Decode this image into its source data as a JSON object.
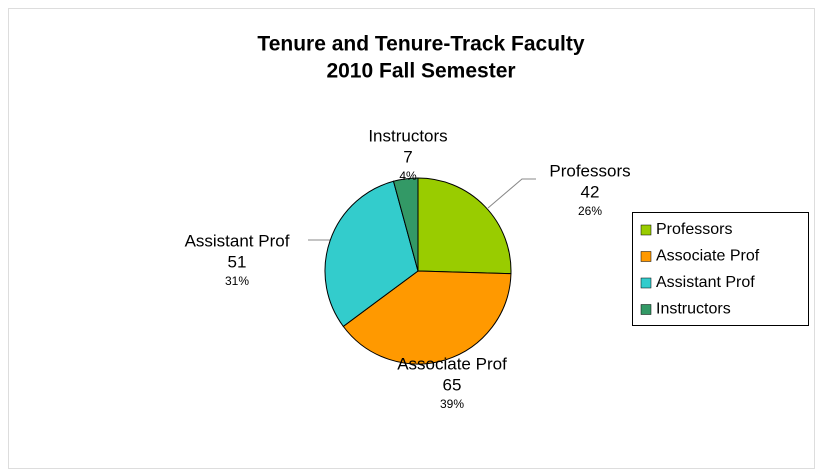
{
  "chart_data": {
    "type": "pie",
    "title": "Tenure and Tenure-Track Faculty",
    "subtitle": "2010 Fall Semester",
    "categories": [
      "Professors",
      "Associate Prof",
      "Assistant Prof",
      "Instructors"
    ],
    "values": [
      42,
      65,
      51,
      7
    ],
    "percent_labels": [
      "26%",
      "39%",
      "31%",
      "4%"
    ],
    "colors": [
      "#99cc00",
      "#ff9900",
      "#33cccc",
      "#339966"
    ],
    "legend": "right"
  }
}
